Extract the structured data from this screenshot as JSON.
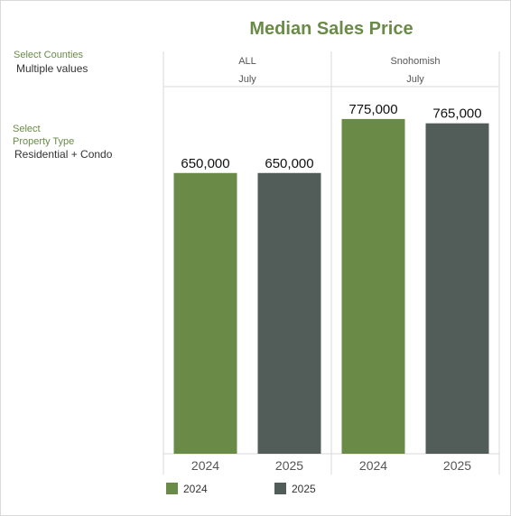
{
  "title": "Median Sales Price",
  "filters": {
    "counties": {
      "label": "Select Counties",
      "value": "Multiple values"
    },
    "property_type": {
      "label_line1": "Select",
      "label_line2": "Property Type",
      "value": "Residential + Condo"
    }
  },
  "colors": {
    "y2024": "#6a8b47",
    "y2025": "#525c58",
    "title": "#6a8b47"
  },
  "legend": [
    {
      "label": "2024",
      "color": "#6a8b47"
    },
    {
      "label": "2025",
      "color": "#525c58"
    }
  ],
  "chart_data": {
    "type": "bar",
    "title": "Median Sales Price",
    "panels": [
      {
        "header": "ALL",
        "subheader": "July",
        "categories": [
          "2024",
          "2025"
        ],
        "values": [
          650000,
          650000
        ],
        "labels": [
          "650,000",
          "650,000"
        ]
      },
      {
        "header": "Snohomish",
        "subheader": "July",
        "categories": [
          "2024",
          "2025"
        ],
        "values": [
          775000,
          765000
        ],
        "labels": [
          "775,000",
          "765,000"
        ]
      }
    ],
    "ylim": [
      0,
      850000
    ],
    "grid": false,
    "legend_position": "bottom"
  }
}
